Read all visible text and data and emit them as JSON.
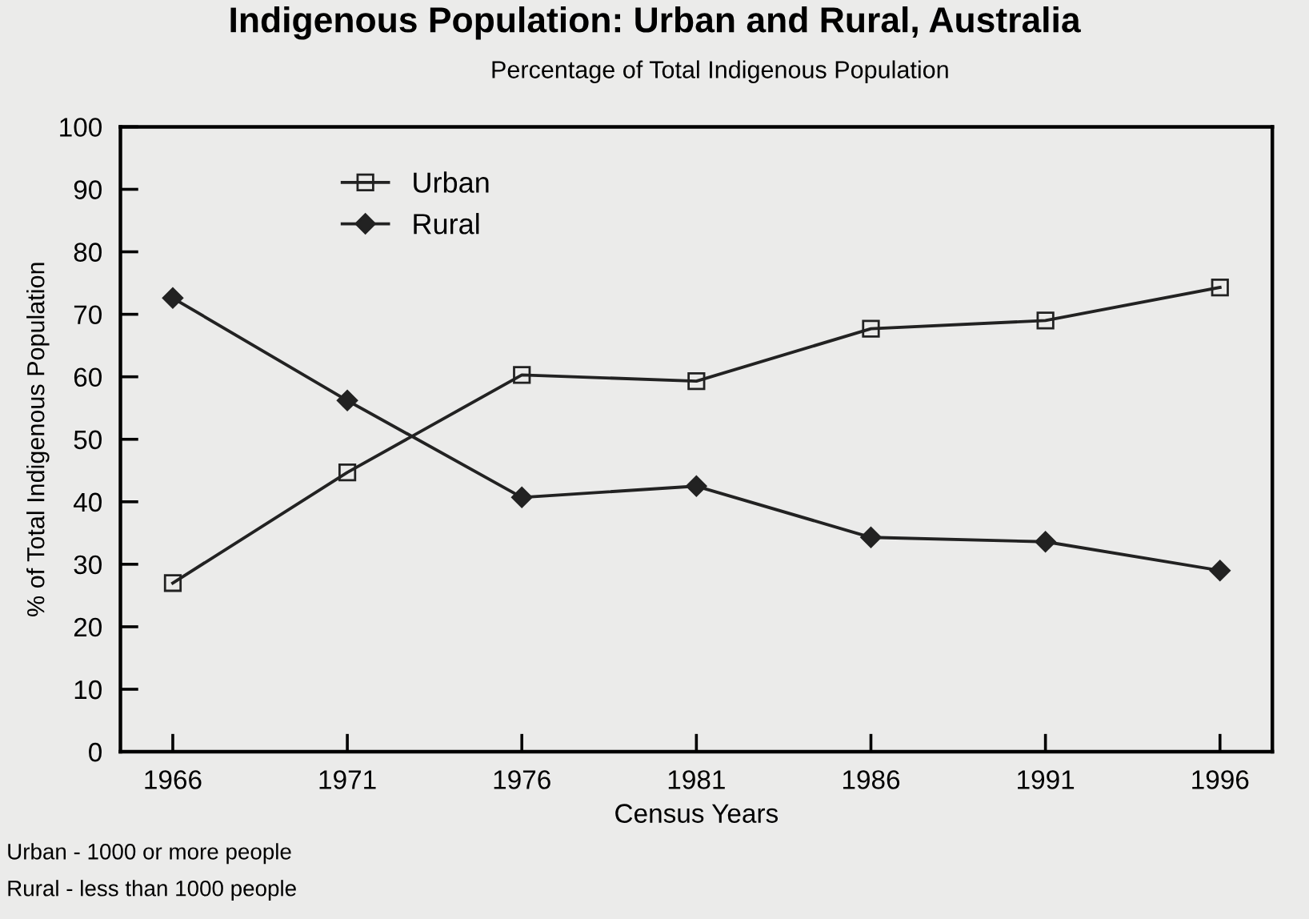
{
  "chart_data": {
    "type": "line",
    "title": "Indigenous Population: Urban and Rural, Australia",
    "subtitle": "Percentage of Total Indigenous Population",
    "xlabel": "Census Years",
    "ylabel": "% of Total Indigenous Population",
    "categories": [
      "1966",
      "1971",
      "1976",
      "1981",
      "1986",
      "1991",
      "1996"
    ],
    "series": [
      {
        "name": "Urban",
        "color": "#222222",
        "marker": "square",
        "values": [
          27,
          44.7,
          60.3,
          59.3,
          67.7,
          69,
          74.3
        ]
      },
      {
        "name": "Rural",
        "color": "#222222",
        "marker": "diamond",
        "values": [
          72.6,
          56.2,
          40.7,
          42.5,
          34.3,
          33.6,
          29
        ]
      }
    ],
    "ylim": [
      0,
      100
    ],
    "yticks": [
      0,
      10,
      20,
      30,
      40,
      50,
      60,
      70,
      80,
      90,
      100
    ],
    "grid": false,
    "legend": "top left",
    "annotations": [
      "Urban - 1000 or more people",
      "Rural - less than 1000 people"
    ]
  }
}
